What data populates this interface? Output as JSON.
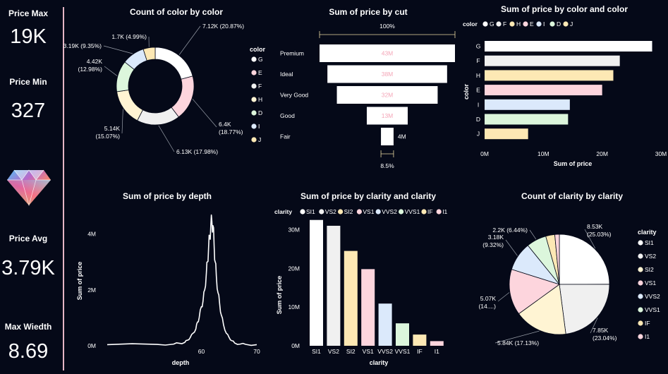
{
  "colors": {
    "bg": "#050918",
    "divider": "#e4b5c4",
    "palette": {
      "white": "#ffffff",
      "pink": "#fdd5dd",
      "lightgray": "#f0f0f0",
      "cream": "#fff4d3",
      "mint": "#dcf6dc",
      "lightblue": "#dbe9fb",
      "yellow": "#fde8b4",
      "pinkText": "#f4a6b8"
    }
  },
  "kpis": [
    {
      "label": "Price Max",
      "value": "19K"
    },
    {
      "label": "Price Min",
      "value": "327"
    },
    {
      "label": "Price Avg",
      "value": "3.79K"
    },
    {
      "label": "Max Wiedth",
      "value": "8.69"
    }
  ],
  "diamond_image": {
    "name": "diamond-logo"
  },
  "chart_data": [
    {
      "id": "color-donut",
      "type": "pie",
      "subtype": "donut",
      "title": "Count of color by color",
      "legend_title": "color",
      "legend_position": "right",
      "legend": [
        "G",
        "E",
        "F",
        "H",
        "D",
        "I",
        "J"
      ],
      "slices": [
        {
          "name": "G",
          "value": 7.12,
          "label": "7.12K (20.87%)",
          "color": "#ffffff"
        },
        {
          "name": "E",
          "value": 6.4,
          "label": "6.4K (18.77%)",
          "color": "#fdd5dd"
        },
        {
          "name": "F",
          "value": 6.13,
          "label": "6.13K (17.98%)",
          "color": "#f0f0f0"
        },
        {
          "name": "H",
          "value": 5.14,
          "label": "5.14K (15.07%)",
          "color": "#fff4d3"
        },
        {
          "name": "D",
          "value": 4.42,
          "label": "4.42K (12.98%)",
          "color": "#dcf6dc"
        },
        {
          "name": "I",
          "value": 3.19,
          "label": "3.19K (9.35%)",
          "color": "#dbe9fb"
        },
        {
          "name": "J",
          "value": 1.7,
          "label": "1.7K (4.99%)",
          "color": "#fde8b4"
        }
      ]
    },
    {
      "id": "cut-funnel",
      "type": "bar",
      "subtype": "funnel",
      "title": "Sum of price by cut",
      "top_label": "100%",
      "bottom_label": "8.5%",
      "categories": [
        "Premium",
        "Ideal",
        "Very Good",
        "Good",
        "Fair"
      ],
      "values": [
        43,
        38,
        32,
        13,
        4
      ],
      "value_labels": [
        "43M",
        "38M",
        "32M",
        "13M",
        "4M"
      ]
    },
    {
      "id": "color-hbar",
      "type": "bar",
      "orientation": "horizontal",
      "title": "Sum of price by color and color",
      "legend_title": "color",
      "legend_position": "top",
      "legend": [
        "G",
        "F",
        "H",
        "E",
        "I",
        "D",
        "J"
      ],
      "categories": [
        "G",
        "F",
        "H",
        "E",
        "I",
        "D",
        "J"
      ],
      "values": [
        28.5,
        23.0,
        21.9,
        20.0,
        14.5,
        14.2,
        7.4
      ],
      "colors": [
        "#ffffff",
        "#f0f0f0",
        "#fde8b4",
        "#fdd5dd",
        "#dbe9fb",
        "#dcf6dc",
        "#fde8b4"
      ],
      "xlabel": "Sum of price",
      "ylabel": "color",
      "xticks": [
        "0M",
        "10M",
        "20M",
        "30M"
      ],
      "xlim": [
        0,
        30
      ]
    },
    {
      "id": "depth-line",
      "type": "line",
      "title": "Sum of price by depth",
      "xlabel": "depth",
      "ylabel": "Sum of price",
      "xticks": [
        "60",
        "70"
      ],
      "yticks": [
        "0M",
        "2M",
        "4M"
      ],
      "xlim": [
        43,
        70
      ],
      "ylim": [
        0,
        4.8
      ],
      "x": [
        43,
        52,
        55,
        56,
        57,
        57.5,
        58,
        58.5,
        59,
        59.3,
        59.6,
        60,
        60.3,
        60.6,
        60.9,
        61.1,
        61.3,
        61.5,
        61.7,
        61.9,
        62.1,
        62.3,
        62.5,
        62.7,
        63,
        63.3,
        63.6,
        64,
        64.5,
        65,
        65.5,
        66,
        67,
        68,
        70
      ],
      "y": [
        0.04,
        0.05,
        0.06,
        0.09,
        0.12,
        0.2,
        0.3,
        0.45,
        0.6,
        0.85,
        1.0,
        1.4,
        1.6,
        2.0,
        2.6,
        3.0,
        3.5,
        3.9,
        4.3,
        4.45,
        4.3,
        3.6,
        3.0,
        2.5,
        1.9,
        1.5,
        1.1,
        0.75,
        0.45,
        0.3,
        0.18,
        0.1,
        0.06,
        0.05,
        0.04
      ]
    },
    {
      "id": "clarity-vbar",
      "type": "bar",
      "title": "Sum of price by clarity and clarity",
      "legend_title": "clarity",
      "legend_position": "top",
      "legend": [
        "SI1",
        "VS2",
        "SI2",
        "VS1",
        "VVS2",
        "VVS1",
        "IF",
        "I1"
      ],
      "categories": [
        "SI1",
        "VS2",
        "SI2",
        "VS1",
        "VVS2",
        "VVS1",
        "IF",
        "I1"
      ],
      "values": [
        32.5,
        31.0,
        24.5,
        19.8,
        10.9,
        5.8,
        2.9,
        1.2
      ],
      "colors": [
        "#ffffff",
        "#f0f0f0",
        "#fde8b4",
        "#fdd5dd",
        "#dbe9fb",
        "#dcf6dc",
        "#fde8b4",
        "#fdd5dd"
      ],
      "xlabel": "clarity",
      "ylabel": "Sum of price",
      "yticks": [
        "0M",
        "10M",
        "20M",
        "30M"
      ],
      "ylim": [
        0,
        35
      ]
    },
    {
      "id": "clarity-pie",
      "type": "pie",
      "title": "Count of clarity by clarity",
      "legend_title": "clarity",
      "legend_position": "right",
      "legend": [
        "SI1",
        "VS2",
        "SI2",
        "VS1",
        "VVS2",
        "VVS1",
        "IF",
        "I1"
      ],
      "slices": [
        {
          "name": "SI1",
          "value": 8.53,
          "label": "8.53K (25.03%)",
          "color": "#ffffff"
        },
        {
          "name": "VS2",
          "value": 7.85,
          "label": "7.85K (23.04%)",
          "color": "#f0f0f0"
        },
        {
          "name": "SI2",
          "value": 5.84,
          "label": "5.84K (17.13%)",
          "color": "#fff4d3"
        },
        {
          "name": "VS1",
          "value": 5.07,
          "label": "5.07K (14....)",
          "color": "#fdd5dd"
        },
        {
          "name": "VVS2",
          "value": 3.18,
          "label": "3.18K (9.32%)",
          "color": "#dbe9fb"
        },
        {
          "name": "VVS1",
          "value": 2.2,
          "label": "2.2K (6.44%)",
          "color": "#dcf6dc"
        },
        {
          "name": "IF",
          "value": 1.0,
          "label": "",
          "color": "#fde8b4"
        },
        {
          "name": "I1",
          "value": 0.5,
          "label": "",
          "color": "#fdd5dd"
        }
      ]
    }
  ]
}
